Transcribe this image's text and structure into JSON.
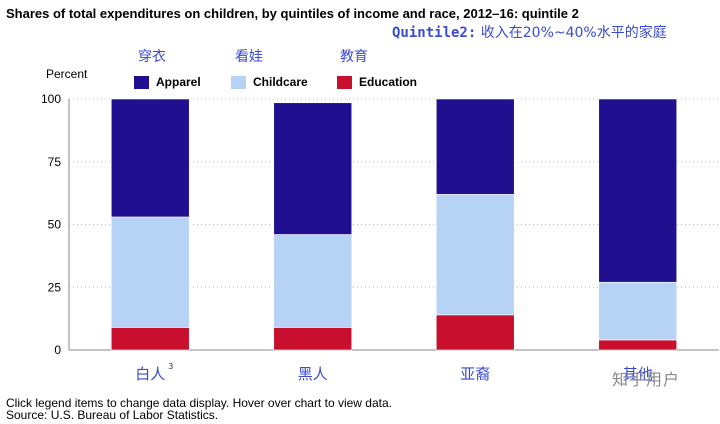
{
  "title": "Shares of total expenditures on children, by quintiles of income and race, 2012–16: quintile 2",
  "annotation": {
    "en": "Quintile2:",
    "cn": "收入在20%~40%水平的家庭"
  },
  "legend_cn": [
    "穿衣",
    "看娃",
    "教育"
  ],
  "footer": {
    "line1": "Click legend items to change data display. Hover over chart to view data.",
    "line2": "Source: U.S. Bureau of Labor Statistics."
  },
  "watermark": "知乎用户",
  "chart_data": {
    "type": "bar",
    "stacked": true,
    "ylabel": "Percent",
    "ylim": [
      0,
      100
    ],
    "yticks": [
      0,
      25,
      50,
      75,
      100
    ],
    "grid": true,
    "legend_position": "top-left",
    "categories": [
      "白人",
      "黑人",
      "亚裔",
      "其他"
    ],
    "category_superscripts": [
      "3",
      "",
      "",
      ""
    ],
    "series": [
      {
        "name": "Education",
        "color": "#c8102e",
        "values": [
          9,
          9,
          14,
          4
        ]
      },
      {
        "name": "Childcare",
        "color": "#b6d3f6",
        "values": [
          44,
          37,
          48,
          23
        ]
      },
      {
        "name": "Apparel",
        "color": "#20108f",
        "values": [
          47,
          52.5,
          38,
          73
        ]
      }
    ],
    "legend_order": [
      "Apparel",
      "Childcare",
      "Education"
    ]
  }
}
